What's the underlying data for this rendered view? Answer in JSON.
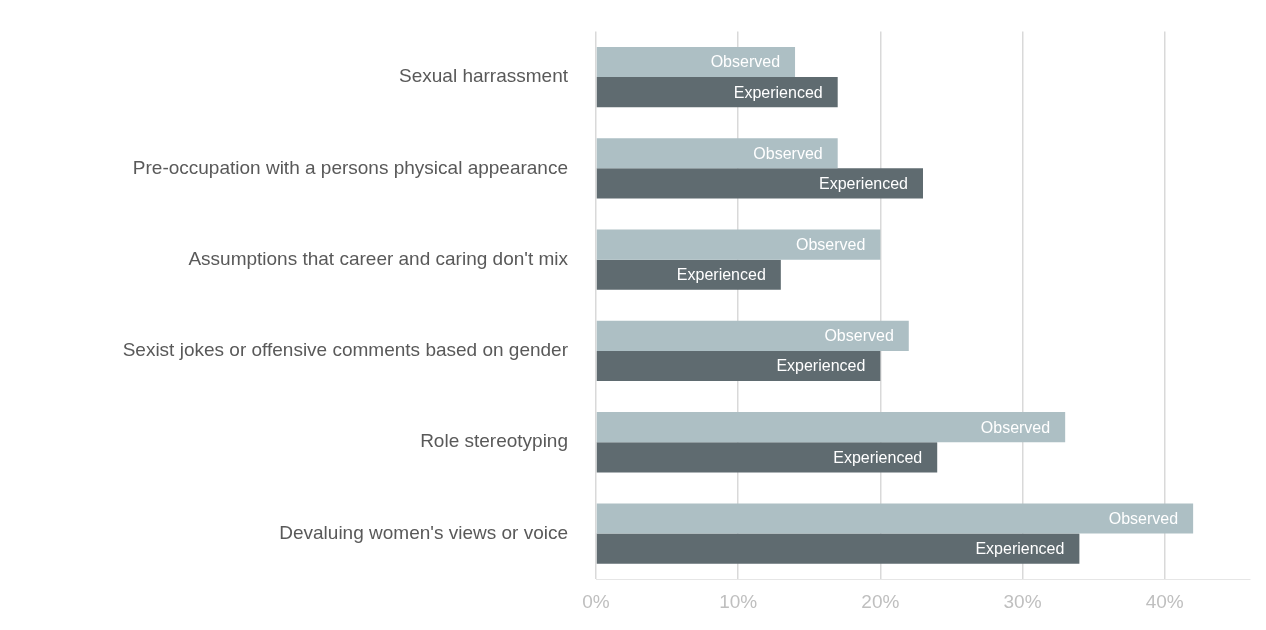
{
  "chart_data": {
    "type": "bar",
    "orientation": "horizontal",
    "categories": [
      "Sexual harrassment",
      "Pre-occupation with a persons physical appearance",
      "Assumptions that career and caring don't mix",
      "Sexist jokes or offensive comments based on gender",
      "Role stereotyping",
      "Devaluing women's views or voice"
    ],
    "series": [
      {
        "name": "Observed",
        "color": "#adbfc4",
        "values": [
          14,
          17,
          20,
          22,
          33,
          42
        ]
      },
      {
        "name": "Experienced",
        "color": "#5f6b70",
        "values": [
          17,
          23,
          13,
          20,
          24,
          34
        ]
      }
    ],
    "xticks": [
      {
        "value": 0,
        "label": "0%"
      },
      {
        "value": 10,
        "label": "10%"
      },
      {
        "value": 20,
        "label": "20%"
      },
      {
        "value": 30,
        "label": "30%"
      },
      {
        "value": 40,
        "label": "40%"
      }
    ],
    "xlim": [
      0,
      46
    ],
    "grid": "x",
    "legend": false
  }
}
